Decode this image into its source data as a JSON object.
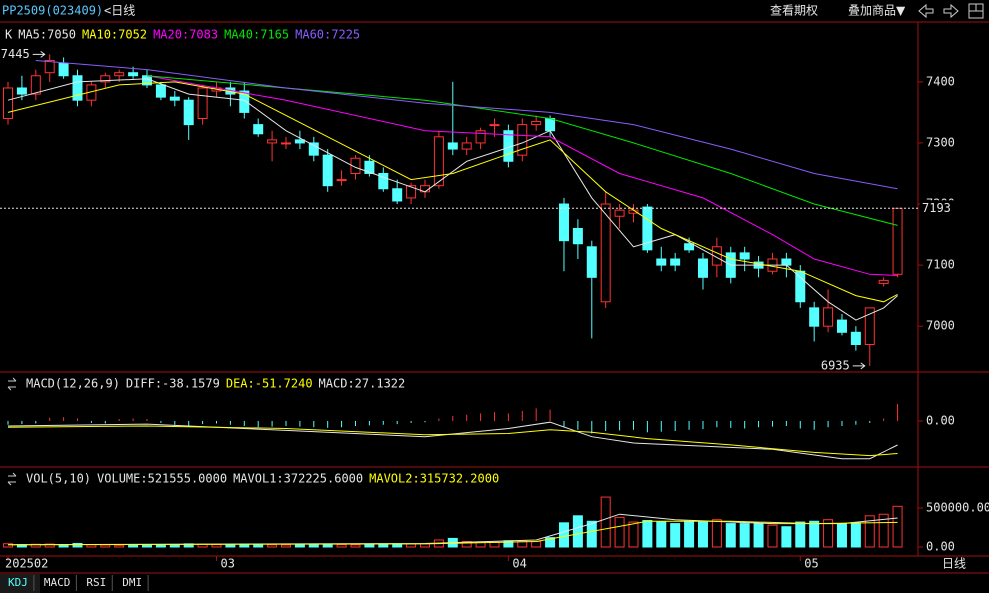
{
  "header": {
    "symbol": "PP2509(023409)",
    "period": "<日线",
    "options": "查看期权",
    "overlay": "叠加商品▼"
  },
  "tabs": [
    "KDJ",
    "MACD",
    "RSI",
    "DMI"
  ],
  "chart_data": [
    {
      "type": "candlestick",
      "label": "K",
      "period_label": "日线",
      "categories": [
        "202502",
        null,
        null,
        null,
        null,
        null,
        null,
        null,
        null,
        null,
        null,
        null,
        null,
        null,
        null,
        "03",
        null,
        null,
        null,
        null,
        null,
        null,
        null,
        null,
        null,
        null,
        null,
        null,
        null,
        null,
        null,
        null,
        null,
        null,
        null,
        null,
        "04",
        null,
        null,
        null,
        null,
        null,
        null,
        null,
        null,
        null,
        null,
        null,
        null,
        null,
        null,
        null,
        null,
        null,
        null,
        null,
        null,
        "05",
        null,
        null,
        null,
        null,
        null,
        null,
        null
      ],
      "xlim": [
        -0.576,
        65.47
      ],
      "ylim": [
        6925,
        7498
      ],
      "yticks": [
        7000,
        7100,
        7200,
        7300,
        7400
      ],
      "up_color": "#ff3232",
      "down_color": "#54ffff",
      "candles": [
        [
          7340,
          7400,
          7330,
          7390
        ],
        [
          7390,
          7410,
          7370,
          7380
        ],
        [
          7380,
          7420,
          7370,
          7410
        ],
        [
          7415,
          7445,
          7400,
          7435
        ],
        [
          7430,
          7440,
          7405,
          7410
        ],
        [
          7410,
          7420,
          7360,
          7370
        ],
        [
          7370,
          7400,
          7360,
          7395
        ],
        [
          7400,
          7415,
          7390,
          7410
        ],
        [
          7410,
          7420,
          7400,
          7415
        ],
        [
          7415,
          7425,
          7405,
          7410
        ],
        [
          7410,
          7420,
          7390,
          7395
        ],
        [
          7395,
          7400,
          7370,
          7375
        ],
        [
          7375,
          7385,
          7360,
          7370
        ],
        [
          7370,
          7375,
          7305,
          7330
        ],
        [
          7340,
          7395,
          7330,
          7390
        ],
        [
          7385,
          7400,
          7375,
          7390
        ],
        [
          7390,
          7400,
          7360,
          7380
        ],
        [
          7385,
          7400,
          7340,
          7350
        ],
        [
          7330,
          7340,
          7310,
          7315
        ],
        [
          7300,
          7320,
          7270,
          7305
        ],
        [
          7300,
          7310,
          7290,
          7300
        ],
        [
          7305,
          7320,
          7290,
          7300
        ],
        [
          7300,
          7310,
          7270,
          7280
        ],
        [
          7280,
          7290,
          7220,
          7230
        ],
        [
          7240,
          7255,
          7230,
          7240
        ],
        [
          7250,
          7280,
          7240,
          7275
        ],
        [
          7270,
          7280,
          7245,
          7250
        ],
        [
          7250,
          7260,
          7220,
          7225
        ],
        [
          7225,
          7240,
          7200,
          7205
        ],
        [
          7210,
          7235,
          7200,
          7230
        ],
        [
          7220,
          7240,
          7210,
          7230
        ],
        [
          7230,
          7320,
          7225,
          7310
        ],
        [
          7300,
          7400,
          7280,
          7290
        ],
        [
          7290,
          7310,
          7280,
          7300
        ],
        [
          7300,
          7325,
          7290,
          7320
        ],
        [
          7330,
          7340,
          7310,
          7330
        ],
        [
          7320,
          7330,
          7260,
          7270
        ],
        [
          7280,
          7340,
          7270,
          7330
        ],
        [
          7330,
          7345,
          7320,
          7335
        ],
        [
          7340,
          7345,
          7310,
          7320
        ],
        [
          7200,
          7210,
          7090,
          7140
        ],
        [
          7160,
          7175,
          7110,
          7135
        ],
        [
          7130,
          7140,
          6980,
          7080
        ],
        [
          7040,
          7220,
          7030,
          7200
        ],
        [
          7180,
          7200,
          7160,
          7190
        ],
        [
          7185,
          7200,
          7170,
          7190
        ],
        [
          7195,
          7200,
          7120,
          7125
        ],
        [
          7110,
          7130,
          7090,
          7100
        ],
        [
          7110,
          7120,
          7090,
          7100
        ],
        [
          7135,
          7145,
          7120,
          7125
        ],
        [
          7110,
          7120,
          7060,
          7080
        ],
        [
          7100,
          7145,
          7080,
          7130
        ],
        [
          7120,
          7130,
          7070,
          7080
        ],
        [
          7120,
          7130,
          7090,
          7110
        ],
        [
          7105,
          7115,
          7080,
          7095
        ],
        [
          7090,
          7120,
          7085,
          7110
        ],
        [
          7110,
          7120,
          7080,
          7100
        ],
        [
          7090,
          7100,
          7030,
          7040
        ],
        [
          7030,
          7040,
          6975,
          7000
        ],
        [
          7000,
          7060,
          6990,
          7030
        ],
        [
          7010,
          7020,
          6985,
          6990
        ],
        [
          6990,
          7000,
          6960,
          6970
        ],
        [
          6970,
          7030,
          6935,
          7030
        ],
        [
          7070,
          7080,
          7065,
          7075
        ],
        [
          7085,
          7193,
          7080,
          7193
        ]
      ],
      "series": [
        {
          "name": "MA5",
          "legend": "MA5:7050",
          "color": "#e6e6e6",
          "x": [
            0,
            5,
            10,
            13,
            17,
            20,
            25,
            30,
            33,
            37,
            39,
            42,
            45,
            48,
            52,
            56,
            59,
            61,
            63,
            64
          ],
          "values": [
            7370,
            7400,
            7405,
            7380,
            7370,
            7320,
            7260,
            7220,
            7270,
            7300,
            7320,
            7210,
            7130,
            7150,
            7100,
            7100,
            7040,
            7010,
            7030,
            7050
          ]
        },
        {
          "name": "MA10",
          "legend": "MA10:7052",
          "color": "#ffff00",
          "x": [
            0,
            8,
            12,
            17,
            23,
            29,
            32,
            37,
            39,
            43,
            47,
            52,
            57,
            61,
            63,
            64
          ],
          "values": [
            7350,
            7395,
            7400,
            7380,
            7310,
            7240,
            7250,
            7290,
            7305,
            7220,
            7160,
            7110,
            7090,
            7050,
            7040,
            7052
          ]
        },
        {
          "name": "MA20",
          "legend": "MA20:7083",
          "color": "#ff00ff",
          "x": [
            10,
            20,
            30,
            39,
            44,
            50,
            55,
            58,
            62,
            64
          ],
          "values": [
            7410,
            7370,
            7320,
            7310,
            7250,
            7210,
            7150,
            7110,
            7085,
            7083
          ]
        },
        {
          "name": "MA40",
          "legend": "MA40:7165",
          "color": "#00e600",
          "x": [
            10,
            20,
            30,
            39,
            45,
            52,
            58,
            64
          ],
          "values": [
            7410,
            7390,
            7370,
            7340,
            7300,
            7250,
            7200,
            7165
          ]
        },
        {
          "name": "MA60",
          "legend": "MA60:7225",
          "color": "#8a5cff",
          "x": [
            2,
            10,
            20,
            30,
            39,
            45,
            52,
            58,
            64
          ],
          "values": [
            7435,
            7420,
            7390,
            7365,
            7350,
            7330,
            7290,
            7250,
            7225
          ]
        }
      ]
    },
    {
      "type": "macd",
      "title": "MACD(12,26,9)",
      "value_legend": "MACD:27.1322",
      "xlim": [
        -0.576,
        65.47
      ],
      "ylim": [
        -70,
        50
      ],
      "yticks": [
        {
          "value": 0,
          "label": "0.00"
        }
      ],
      "values": [
        -6,
        -5,
        -4,
        5,
        6,
        4,
        -3,
        -4,
        3,
        4,
        3,
        -3,
        -6,
        -8,
        -5,
        -4,
        -6,
        -8,
        -10,
        -9,
        -8,
        -9,
        -10,
        -11,
        -10,
        -8,
        -7,
        -6,
        -5,
        -3,
        -2,
        4,
        8,
        10,
        12,
        14,
        12,
        16,
        20,
        18,
        -10,
        -14,
        -20,
        -16,
        -15,
        -14,
        -18,
        -17,
        -16,
        -14,
        -13,
        -10,
        -11,
        -12,
        -10,
        -9,
        -8,
        -12,
        -14,
        -10,
        -8,
        -6,
        -3,
        4,
        27.1322
      ],
      "series": [
        {
          "name": "DIFF",
          "legend": "DIFF:-38.1579",
          "color": "#e6e6e6",
          "x": [
            0,
            10,
            20,
            30,
            36,
            39,
            42,
            45,
            50,
            55,
            60,
            62,
            64
          ],
          "values": [
            -8,
            -5,
            -15,
            -25,
            -12,
            -2,
            -25,
            -35,
            -40,
            -45,
            -60,
            -60,
            -38.1579
          ]
        },
        {
          "name": "DEA",
          "legend": "DEA:-51.7240",
          "color": "#ffff00",
          "x": [
            0,
            10,
            20,
            30,
            36,
            39,
            42,
            46,
            52,
            58,
            62,
            64
          ],
          "values": [
            -10,
            -8,
            -12,
            -22,
            -20,
            -14,
            -18,
            -28,
            -38,
            -50,
            -55,
            -51.724
          ]
        }
      ]
    },
    {
      "type": "volume",
      "title": "VOL(5,10)",
      "volume_legend": "VOLUME:521555.0000",
      "xlim": [
        -0.576,
        65.47
      ],
      "ylim": [
        0,
        1000000
      ],
      "yticks": [
        {
          "value": 0,
          "label": "0.00"
        },
        {
          "value": 500000,
          "label": "500000.00"
        }
      ],
      "values": [
        42000,
        30000,
        35000,
        38000,
        30000,
        45000,
        28000,
        25000,
        22000,
        26000,
        30000,
        25000,
        28000,
        40000,
        35000,
        30000,
        32000,
        36000,
        30000,
        28000,
        26000,
        30000,
        32000,
        35000,
        30000,
        28000,
        33000,
        36000,
        40000,
        38000,
        42000,
        90000,
        110000,
        70000,
        65000,
        60000,
        80000,
        75000,
        70000,
        120000,
        310000,
        400000,
        330000,
        640000,
        380000,
        320000,
        340000,
        320000,
        300000,
        330000,
        320000,
        350000,
        300000,
        300000,
        300000,
        280000,
        260000,
        320000,
        330000,
        350000,
        300000,
        310000,
        400000,
        420000,
        521555
      ],
      "series": [
        {
          "name": "MAVOL1",
          "legend": "MAVOL1:372225.6000",
          "color": "#e6e6e6",
          "x": [
            0,
            30,
            38,
            42,
            44,
            48,
            55,
            60,
            64
          ],
          "values": [
            30000,
            45000,
            90000,
            300000,
            420000,
            350000,
            300000,
            300000,
            372225.6
          ]
        },
        {
          "name": "MAVOL2",
          "legend": "MAVOL2:315732.2000",
          "color": "#ffff00",
          "x": [
            0,
            30,
            38,
            42,
            46,
            52,
            58,
            64
          ],
          "values": [
            30000,
            40000,
            70000,
            200000,
            330000,
            330000,
            300000,
            315732.2
          ]
        }
      ]
    }
  ]
}
